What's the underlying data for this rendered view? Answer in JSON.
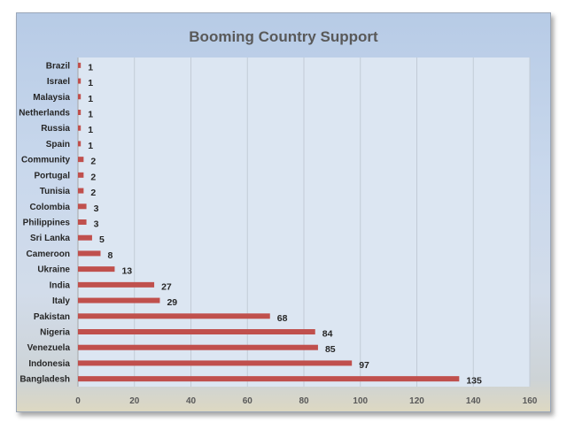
{
  "chart_data": {
    "type": "bar",
    "orientation": "horizontal",
    "title": "Booming Country Support",
    "categories": [
      "Brazil",
      "Israel",
      "Malaysia",
      "Netherlands",
      "Russia",
      "Spain",
      "Community",
      "Portugal",
      "Tunisia",
      "Colombia",
      "Philippines",
      "Sri Lanka",
      "Cameroon",
      "Ukraine",
      "India",
      "Italy",
      "Pakistan",
      "Nigeria",
      "Venezuela",
      "Indonesia",
      "Bangladesh"
    ],
    "values": [
      1,
      1,
      1,
      1,
      1,
      1,
      2,
      2,
      2,
      3,
      3,
      5,
      8,
      13,
      27,
      29,
      68,
      84,
      85,
      97,
      135
    ],
    "data_labels": [
      "1",
      "1",
      "1",
      "1",
      "1",
      "1",
      "2",
      "2",
      "2",
      "3",
      "3",
      "5",
      "8",
      "13",
      "27",
      "29",
      "68",
      "84",
      "85",
      "97",
      "135"
    ],
    "xlim": [
      0,
      160
    ],
    "x_ticks": [
      "0",
      "20",
      "40",
      "60",
      "80",
      "100",
      "120",
      "140",
      "160"
    ],
    "grid": "vertical",
    "legend": "none",
    "bar_color": "#c0504d",
    "xlabel": "",
    "ylabel": ""
  }
}
